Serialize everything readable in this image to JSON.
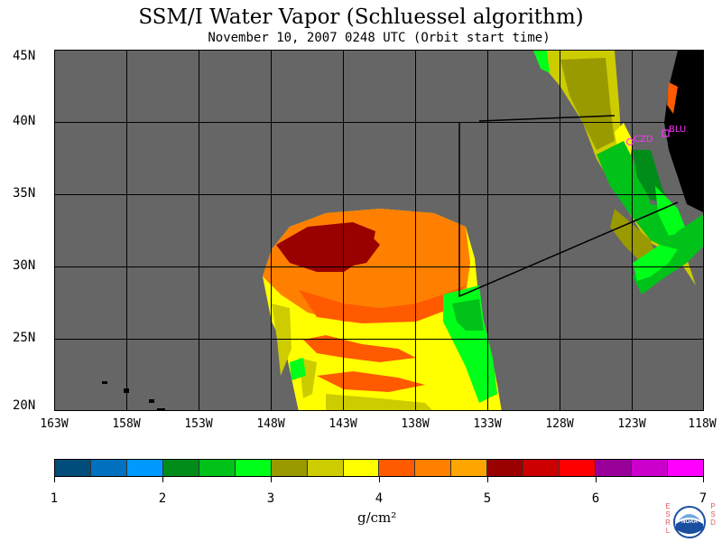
{
  "title": "SSM/I Water Vapor (Schluessel algorithm)",
  "subtitle": "November 10, 2007  0248 UTC  (Orbit start time)",
  "map": {
    "lat_labels": [
      "45N",
      "40N",
      "35N",
      "30N",
      "25N",
      "20N"
    ],
    "lon_labels": [
      "163W",
      "158W",
      "153W",
      "148W",
      "143W",
      "138W",
      "133W",
      "128W",
      "123W",
      "118W"
    ],
    "stations": [
      {
        "name": "CZD",
        "color": "#ff33ff"
      },
      {
        "name": "BLU",
        "color": "#ff33ff"
      }
    ],
    "land_color": "#000000",
    "nodata_color": "#666666"
  },
  "colorbar": {
    "colors": [
      "#004c7a",
      "#0070bf",
      "#0099ff",
      "#008c19",
      "#00c219",
      "#00ff19",
      "#999900",
      "#cccc00",
      "#ffff00",
      "#ff5a00",
      "#ff8000",
      "#ffa500",
      "#990000",
      "#cc0000",
      "#ff0000",
      "#990099",
      "#cc00cc",
      "#ff00ff"
    ],
    "tick_labels": [
      "1",
      "2",
      "3",
      "4",
      "5",
      "6",
      "7"
    ],
    "units": "g/cm²"
  },
  "logo": {
    "left_text": "ESRL",
    "right_text": "PSD",
    "badge_text": "NOAA"
  }
}
